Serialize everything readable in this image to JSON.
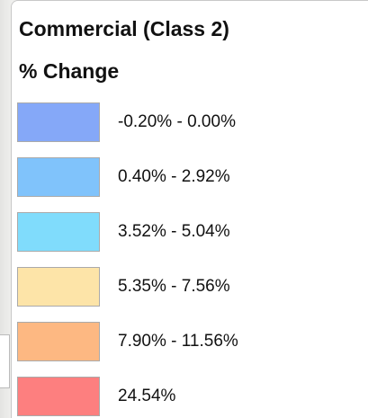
{
  "legend": {
    "title": "Commercial (Class 2)",
    "subtitle": "% Change",
    "items": [
      {
        "label": "-0.20% - 0.00%",
        "color": "#85a8f8"
      },
      {
        "label": "0.40% - 2.92%",
        "color": "#80c3fb"
      },
      {
        "label": "3.52% - 5.04%",
        "color": "#80dcfc"
      },
      {
        "label": "5.35% - 7.56%",
        "color": "#fde4a8"
      },
      {
        "label": "7.90% - 11.56%",
        "color": "#fdb882"
      },
      {
        "label": "24.54%",
        "color": "#fd7f7f"
      }
    ]
  }
}
